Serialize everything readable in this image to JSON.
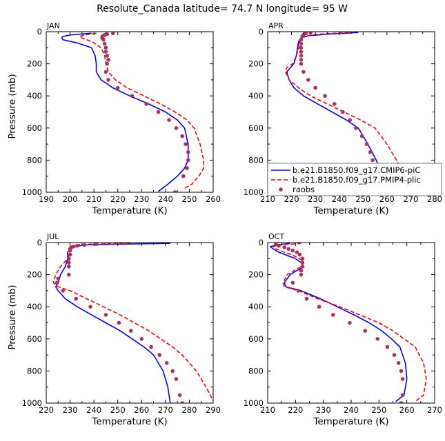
{
  "title": "Resolute_Canada   latitude= 74.7 N longitude= 95 W",
  "colors": {
    "cmip6": "#0000ff",
    "pmip4": "#ff0000",
    "raobs": "#b03060"
  },
  "chart_data": [
    {
      "type": "line",
      "panel": "JAN",
      "xlabel": "Temperature (K)",
      "ylabel": "Pressure (mb)",
      "xlim": [
        190,
        260
      ],
      "ylim": [
        1000,
        0
      ],
      "xticks": [
        190,
        200,
        210,
        220,
        230,
        240,
        250,
        260
      ],
      "yticks": [
        0,
        200,
        400,
        600,
        800,
        1000
      ],
      "legend": null,
      "series": [
        {
          "kind": "line",
          "style": "solid",
          "color": "#0000ff",
          "x": [
            209,
            200,
            197,
            196.5,
            197,
            203,
            209,
            210.5,
            211,
            211,
            213,
            218,
            225,
            233,
            240,
            245,
            248,
            249.5,
            249.5,
            248,
            245,
            241,
            237
          ],
          "y": [
            10,
            20,
            30,
            40,
            50,
            70,
            100,
            150,
            200,
            250,
            300,
            350,
            400,
            450,
            500,
            550,
            600,
            700,
            800,
            850,
            900,
            950,
            995
          ]
        },
        {
          "kind": "line",
          "style": "dashed",
          "color": "#ff0000",
          "x": [
            211,
            206,
            204,
            205,
            207,
            210,
            213,
            214.5,
            215,
            216,
            219,
            224,
            231,
            238,
            244,
            249,
            252,
            254.5,
            256,
            256,
            254,
            251,
            248
          ],
          "y": [
            10,
            20,
            30,
            40,
            50,
            70,
            100,
            150,
            200,
            250,
            300,
            350,
            400,
            450,
            500,
            550,
            600,
            700,
            800,
            850,
            900,
            950,
            975
          ]
        },
        {
          "kind": "points",
          "color": "#b03060",
          "x": [
            218,
            215.5,
            214.5,
            214,
            213.5,
            213.5,
            214,
            214.5,
            215,
            215,
            215.5,
            216,
            215.5,
            215,
            216,
            220,
            226,
            232,
            237,
            241.5,
            244.5,
            247,
            248.5,
            249.5,
            249.5,
            249,
            247.5,
            244
          ],
          "y": [
            10,
            15,
            20,
            25,
            30,
            40,
            50,
            75,
            100,
            125,
            150,
            175,
            200,
            250,
            300,
            350,
            400,
            450,
            500,
            550,
            600,
            650,
            700,
            750,
            800,
            850,
            900,
            1000
          ]
        }
      ]
    },
    {
      "type": "line",
      "panel": "APR",
      "xlabel": "Temperature (K)",
      "ylabel": "",
      "xlim": [
        210,
        280
      ],
      "ylim": [
        1000,
        0
      ],
      "xticks": [
        210,
        220,
        230,
        240,
        250,
        260,
        270,
        280
      ],
      "yticks": [
        0,
        200,
        400,
        600,
        800,
        1000
      ],
      "legend": {
        "placement": "lower-right",
        "entries": [
          "b.e21.B1850.f09_g17.CMIP6-piC",
          "b.e21.B1850.f09_g17.PMIP4-plic",
          "raobs"
        ]
      },
      "series": [
        {
          "kind": "line",
          "style": "solid",
          "color": "#0000ff",
          "x": [
            248,
            236,
            227,
            224,
            223,
            222.5,
            222,
            221,
            219.5,
            218,
            219,
            221,
            225,
            231,
            237,
            243,
            248,
            252,
            255.5,
            257,
            256.5,
            254,
            250
          ],
          "y": [
            5,
            15,
            25,
            40,
            60,
            100,
            150,
            200,
            225,
            250,
            300,
            350,
            400,
            450,
            500,
            550,
            600,
            700,
            800,
            850,
            900,
            950,
            995
          ]
        },
        {
          "kind": "line",
          "style": "dashed",
          "color": "#ff0000",
          "x": [
            244,
            232,
            226,
            224,
            223.5,
            223,
            222,
            220.5,
            218,
            217.5,
            219,
            223,
            228,
            235,
            242,
            249,
            255,
            260,
            264,
            266,
            268,
            270,
            269
          ],
          "y": [
            5,
            15,
            25,
            40,
            60,
            100,
            150,
            200,
            225,
            250,
            300,
            350,
            400,
            450,
            500,
            550,
            600,
            700,
            800,
            850,
            900,
            950,
            995
          ]
        },
        {
          "kind": "points",
          "color": "#b03060",
          "x": [
            228,
            226,
            225,
            224.5,
            224,
            224,
            224,
            224,
            224,
            224,
            224,
            225,
            227,
            230,
            234,
            238,
            241.5,
            244.5,
            247,
            249.5,
            251.5,
            253,
            254,
            254.5,
            254.5,
            254,
            252
          ],
          "y": [
            5,
            10,
            20,
            30,
            50,
            75,
            100,
            125,
            150,
            175,
            200,
            250,
            300,
            350,
            400,
            450,
            500,
            550,
            600,
            650,
            700,
            750,
            800,
            850,
            900,
            950,
            1000
          ]
        }
      ]
    },
    {
      "type": "line",
      "panel": "JUL",
      "xlabel": "Temperature (K)",
      "ylabel": "Pressure (mb)",
      "xlim": [
        220,
        290
      ],
      "ylim": [
        1000,
        0
      ],
      "xticks": [
        220,
        230,
        240,
        250,
        260,
        270,
        280,
        290
      ],
      "yticks": [
        0,
        200,
        400,
        600,
        800,
        1000
      ],
      "legend": null,
      "series": [
        {
          "kind": "line",
          "style": "solid",
          "color": "#0000ff",
          "x": [
            272,
            250,
            236,
            232,
            230,
            229,
            229,
            228,
            226,
            225,
            224,
            225,
            228,
            233,
            239,
            245,
            251,
            256,
            261,
            265,
            269,
            271,
            272
          ],
          "y": [
            5,
            10,
            15,
            25,
            40,
            60,
            100,
            150,
            200,
            250,
            275,
            300,
            350,
            400,
            450,
            500,
            550,
            600,
            650,
            700,
            800,
            900,
            1000
          ]
        },
        {
          "kind": "line",
          "style": "dashed",
          "color": "#ff0000",
          "x": [
            255,
            238,
            232,
            230,
            230,
            230,
            229,
            226,
            224,
            223,
            225,
            230,
            237,
            244,
            251,
            257,
            263,
            268,
            273,
            277,
            283,
            287,
            290
          ],
          "y": [
            5,
            10,
            15,
            25,
            40,
            60,
            100,
            150,
            200,
            250,
            275,
            300,
            350,
            400,
            450,
            500,
            550,
            600,
            650,
            700,
            800,
            900,
            985
          ]
        },
        {
          "kind": "points",
          "color": "#b03060",
          "x": [
            241,
            236,
            233,
            231.5,
            230.5,
            230,
            230,
            230,
            229.5,
            229.5,
            229.5,
            229.5,
            225,
            224.5,
            227,
            232.5,
            238.5,
            245,
            250.5,
            255.5,
            260,
            264,
            267.5,
            270.5,
            273,
            274.5,
            276,
            277
          ],
          "y": [
            10,
            15,
            20,
            25,
            30,
            40,
            50,
            75,
            100,
            125,
            150,
            200,
            225,
            250,
            300,
            350,
            400,
            450,
            500,
            550,
            600,
            650,
            700,
            750,
            800,
            850,
            950,
            1000
          ]
        }
      ]
    },
    {
      "type": "line",
      "panel": "OCT",
      "xlabel": "Temperature (K)",
      "ylabel": "",
      "xlim": [
        210,
        270
      ],
      "ylim": [
        1000,
        0
      ],
      "xticks": [
        210,
        220,
        230,
        240,
        250,
        260,
        270
      ],
      "yticks": [
        0,
        200,
        400,
        600,
        800,
        1000
      ],
      "legend": null,
      "series": [
        {
          "kind": "line",
          "style": "solid",
          "color": "#0000ff",
          "x": [
            218,
            213,
            211,
            212,
            214,
            217,
            220,
            222,
            223,
            218,
            216,
            216.5,
            222,
            229,
            235,
            241,
            246.5,
            251,
            254.5,
            257.5,
            259.5,
            260,
            259,
            256
          ],
          "y": [
            5,
            15,
            25,
            40,
            60,
            80,
            100,
            125,
            150,
            200,
            250,
            275,
            300,
            350,
            400,
            450,
            500,
            550,
            600,
            650,
            750,
            850,
            950,
            990
          ]
        },
        {
          "kind": "line",
          "style": "dashed",
          "color": "#ff0000",
          "x": [
            222,
            214,
            212,
            213,
            216,
            219,
            221.5,
            223,
            222,
            217,
            215.5,
            216,
            221,
            228,
            236,
            243,
            250,
            255,
            259,
            263,
            266,
            267,
            266,
            263
          ],
          "y": [
            5,
            15,
            25,
            40,
            60,
            80,
            100,
            125,
            150,
            200,
            250,
            275,
            300,
            350,
            400,
            450,
            500,
            550,
            600,
            650,
            750,
            850,
            950,
            990
          ]
        },
        {
          "kind": "points",
          "color": "#b03060",
          "x": [
            213,
            214,
            216,
            217.5,
            219,
            220.5,
            221.5,
            222.5,
            222.5,
            222.5,
            222,
            222,
            219,
            221,
            224,
            228.5,
            233.5,
            239.5,
            245,
            249.5,
            253,
            255.5,
            257,
            258,
            258.5,
            258.5,
            258
          ],
          "y": [
            10,
            20,
            30,
            40,
            50,
            60,
            75,
            100,
            125,
            150,
            175,
            200,
            250,
            300,
            350,
            400,
            450,
            500,
            550,
            600,
            650,
            700,
            750,
            800,
            850,
            950,
            1000
          ]
        }
      ]
    }
  ]
}
